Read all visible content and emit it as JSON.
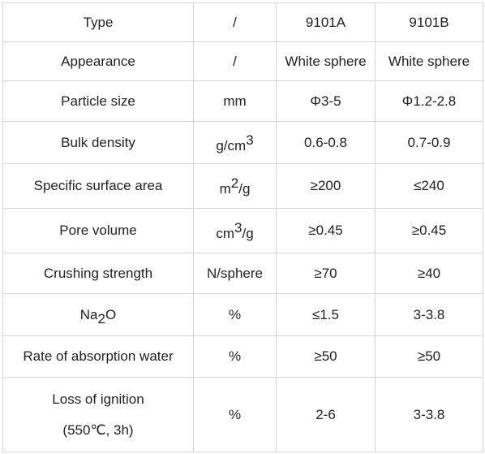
{
  "columns": {
    "type_label": "Type",
    "unit": "/",
    "a": "9101A",
    "b": "9101B"
  },
  "rows": {
    "appearance": {
      "label": "Appearance",
      "unit": "/",
      "a": "White sphere",
      "b": "White sphere"
    },
    "particle_size": {
      "label": "Particle size",
      "unit": "mm",
      "a": "Φ3-5",
      "b": "Φ1.2-2.8"
    },
    "bulk_density": {
      "label": "Bulk density",
      "unit_base": "g/cm",
      "unit_sup": "3",
      "a": "0.6-0.8",
      "b": "0.7-0.9"
    },
    "surface_area": {
      "label": "Specific surface area",
      "unit_pre": "m",
      "unit_sup": "2",
      "unit_post": "/g",
      "a": "≥200",
      "b": "≤240"
    },
    "pore_volume": {
      "label": "Pore volume",
      "unit_pre": "cm",
      "unit_sup": "3",
      "unit_post": "/g",
      "a": "≥0.45",
      "b": "≥0.45"
    },
    "crushing": {
      "label": "Crushing strength",
      "unit": "N/sphere",
      "a": "≥70",
      "b": "≥40"
    },
    "na2o": {
      "label_pre": "Na",
      "label_sub": "2",
      "label_post": "O",
      "unit": "%",
      "a": "≤1.5",
      "b": "3-3.8"
    },
    "absorption": {
      "label": "Rate of absorption water",
      "unit": "%",
      "a": "≥50",
      "b": "≥50"
    },
    "ignition": {
      "label_line1": "Loss of ignition",
      "label_line2": "(550℃, 3h)",
      "unit": "%",
      "a": "2-6",
      "b": "3-3.8"
    }
  }
}
